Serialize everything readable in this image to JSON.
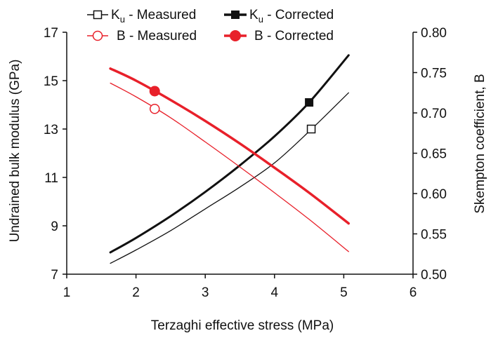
{
  "chart_data": {
    "type": "line",
    "x_axis": {
      "label": "Terzaghi effective stress (MPa)",
      "range": [
        1,
        6
      ],
      "ticks": [
        "1",
        "2",
        "3",
        "4",
        "5",
        "6"
      ]
    },
    "y_axis_left": {
      "label": "Undrained bulk modulus (GPa)",
      "range": [
        7,
        17
      ],
      "ticks": [
        "7",
        "9",
        "11",
        "13",
        "15",
        "17"
      ]
    },
    "y_axis_right": {
      "label": "Skempton coefficient, B",
      "range": [
        0.5,
        0.8
      ],
      "ticks": [
        "0.50",
        "0.55",
        "0.60",
        "0.65",
        "0.70",
        "0.75",
        "0.80"
      ]
    },
    "legend": {
      "position": "top",
      "ku_measured": {
        "main": "K",
        "sub": "u",
        "rest": " - Measured"
      },
      "ku_corrected": {
        "main": "K",
        "sub": "u",
        "rest": " - Corrected"
      },
      "b_measured": "B - Measured",
      "b_corrected": "B - Corrected"
    },
    "series": [
      {
        "id": "ku_measured",
        "axis": "left",
        "color": "#111111",
        "marker": "open-square",
        "points": [
          [
            1.63,
            7.45
          ],
          [
            2.0,
            8.0
          ],
          [
            2.5,
            8.8
          ],
          [
            3.0,
            9.7
          ],
          [
            3.5,
            10.6
          ],
          [
            4.0,
            11.6
          ],
          [
            4.5,
            12.9
          ],
          [
            5.07,
            14.5
          ]
        ],
        "marker_points": [
          [
            4.53,
            13.0
          ]
        ]
      },
      {
        "id": "ku_corrected",
        "axis": "left",
        "color": "#111111",
        "marker": "filled-square",
        "points": [
          [
            1.63,
            7.9
          ],
          [
            2.0,
            8.5
          ],
          [
            2.5,
            9.4
          ],
          [
            3.0,
            10.4
          ],
          [
            3.5,
            11.5
          ],
          [
            4.0,
            12.7
          ],
          [
            4.5,
            14.1
          ],
          [
            5.07,
            16.05
          ]
        ],
        "marker_points": [
          [
            4.5,
            14.1
          ]
        ]
      },
      {
        "id": "b_measured",
        "axis": "right",
        "color": "#e8202a",
        "marker": "open-circle",
        "points": [
          [
            1.63,
            0.737
          ],
          [
            2.0,
            0.72
          ],
          [
            2.5,
            0.694
          ],
          [
            3.0,
            0.664
          ],
          [
            3.5,
            0.633
          ],
          [
            4.0,
            0.601
          ],
          [
            4.5,
            0.568
          ],
          [
            5.07,
            0.528
          ]
        ],
        "marker_points": [
          [
            2.27,
            0.705
          ]
        ]
      },
      {
        "id": "b_corrected",
        "axis": "right",
        "color": "#e8202a",
        "marker": "filled-circle",
        "points": [
          [
            1.63,
            0.755
          ],
          [
            2.0,
            0.74
          ],
          [
            2.5,
            0.716
          ],
          [
            3.0,
            0.69
          ],
          [
            3.5,
            0.662
          ],
          [
            4.0,
            0.632
          ],
          [
            4.5,
            0.601
          ],
          [
            5.07,
            0.563
          ]
        ],
        "marker_points": [
          [
            2.27,
            0.727
          ]
        ]
      }
    ]
  }
}
